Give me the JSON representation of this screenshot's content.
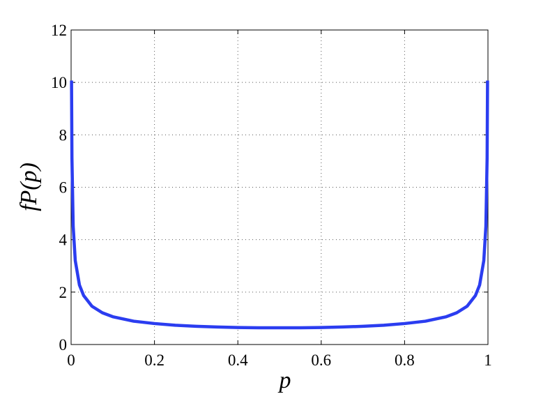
{
  "chart_data": {
    "type": "line",
    "xlabel": "p",
    "ylabel": "fP(p)",
    "x": [
      0.001,
      0.002,
      0.005,
      0.01,
      0.02,
      0.03,
      0.05,
      0.075,
      0.1,
      0.15,
      0.2,
      0.25,
      0.3,
      0.35,
      0.4,
      0.45,
      0.5,
      0.55,
      0.6,
      0.65,
      0.7,
      0.75,
      0.8,
      0.85,
      0.9,
      0.925,
      0.95,
      0.97,
      0.98,
      0.99,
      0.995,
      0.998,
      0.999
    ],
    "series": [
      {
        "color": "#2b3df0",
        "values": [
          10.07,
          7.12,
          4.51,
          3.2,
          2.27,
          1.87,
          1.46,
          1.21,
          1.06,
          0.89,
          0.8,
          0.735,
          0.695,
          0.667,
          0.65,
          0.64,
          0.637,
          0.64,
          0.65,
          0.667,
          0.695,
          0.735,
          0.8,
          0.89,
          1.06,
          1.21,
          1.46,
          1.87,
          2.27,
          3.2,
          4.51,
          7.12,
          10.07
        ]
      }
    ],
    "xlim": [
      0,
      1
    ],
    "ylim": [
      0,
      12
    ],
    "xticks": [
      0,
      0.2,
      0.4,
      0.6,
      0.8,
      1
    ],
    "yticks": [
      0,
      2,
      4,
      6,
      8,
      10,
      12
    ],
    "grid": true
  }
}
